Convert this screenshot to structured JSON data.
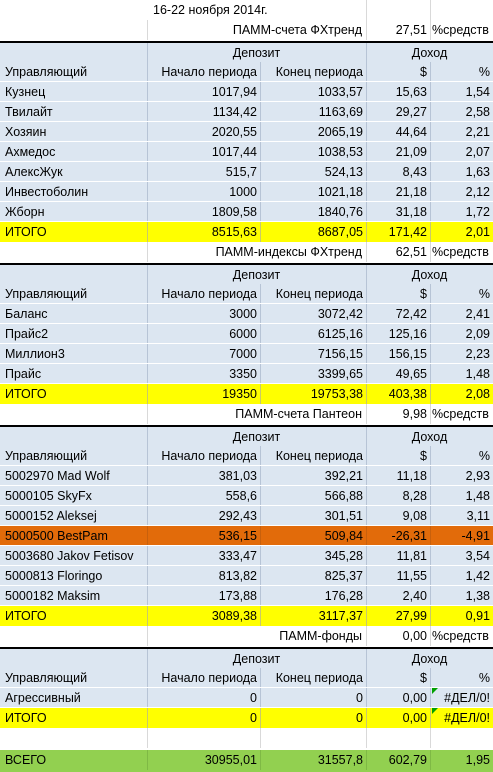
{
  "title": "16-22 ноября 2014г.",
  "headers": {
    "manager": "Управляющий",
    "deposit": "Депозит",
    "income": "Доход",
    "start": "Начало периода",
    "end": "Конец периода",
    "dollar": "$",
    "percent": "%"
  },
  "sections": [
    {
      "title": "ПАММ-счета ФХтренд",
      "share": "27,51",
      "share_unit": "%средств",
      "rows": [
        {
          "name": "Кузнец",
          "start": "1017,94",
          "end": "1033,57",
          "usd": "15,63",
          "pct": "1,54"
        },
        {
          "name": "Твилайт",
          "start": "1134,42",
          "end": "1163,69",
          "usd": "29,27",
          "pct": "2,58"
        },
        {
          "name": "Хозяин",
          "start": "2020,55",
          "end": "2065,19",
          "usd": "44,64",
          "pct": "2,21"
        },
        {
          "name": "Ахмедос",
          "start": "1017,44",
          "end": "1038,53",
          "usd": "21,09",
          "pct": "2,07"
        },
        {
          "name": "АлексЖук",
          "start": "515,7",
          "end": "524,13",
          "usd": "8,43",
          "pct": "1,63"
        },
        {
          "name": "Инвестоболин",
          "start": "1000",
          "end": "1021,18",
          "usd": "21,18",
          "pct": "2,12"
        },
        {
          "name": "Жборн",
          "start": "1809,58",
          "end": "1840,76",
          "usd": "31,18",
          "pct": "1,72"
        }
      ],
      "total": {
        "name": "ИТОГО",
        "start": "8515,63",
        "end": "8687,05",
        "usd": "171,42",
        "pct": "2,01"
      }
    },
    {
      "title": "ПАММ-индексы ФХтренд",
      "share": "62,51",
      "share_unit": "%средств",
      "rows": [
        {
          "name": "Баланс",
          "start": "3000",
          "end": "3072,42",
          "usd": "72,42",
          "pct": "2,41"
        },
        {
          "name": "Прайс2",
          "start": "6000",
          "end": "6125,16",
          "usd": "125,16",
          "pct": "2,09"
        },
        {
          "name": "Миллион3",
          "start": "7000",
          "end": "7156,15",
          "usd": "156,15",
          "pct": "2,23"
        },
        {
          "name": "Прайс",
          "start": "3350",
          "end": "3399,65",
          "usd": "49,65",
          "pct": "1,48"
        }
      ],
      "total": {
        "name": "ИТОГО",
        "start": "19350",
        "end": "19753,38",
        "usd": "403,38",
        "pct": "2,08"
      }
    },
    {
      "title": "ПАММ-счета Пантеон",
      "share": "9,98",
      "share_unit": "%средств",
      "rows": [
        {
          "name": "5002970 Mad Wolf",
          "start": "381,03",
          "end": "392,21",
          "usd": "11,18",
          "pct": "2,93"
        },
        {
          "name": "5000105 SkyFx",
          "start": "558,6",
          "end": "566,88",
          "usd": "8,28",
          "pct": "1,48"
        },
        {
          "name": "5000152 Aleksej",
          "start": "292,43",
          "end": "301,51",
          "usd": "9,08",
          "pct": "3,11"
        },
        {
          "name": "5000500 BestPam",
          "start": "536,15",
          "end": "509,84",
          "usd": "-26,31",
          "pct": "-4,91",
          "highlight": "#e26b0a"
        },
        {
          "name": "5003680 Jakov Fetisov",
          "start": "333,47",
          "end": "345,28",
          "usd": "11,81",
          "pct": "3,54"
        },
        {
          "name": "5000813 Floringo",
          "start": "813,82",
          "end": "825,37",
          "usd": "11,55",
          "pct": "1,42"
        },
        {
          "name": "5000182 Maksim",
          "start": "173,88",
          "end": "176,28",
          "usd": "2,40",
          "pct": "1,38"
        }
      ],
      "total": {
        "name": "ИТОГО",
        "start": "3089,38",
        "end": "3117,37",
        "usd": "27,99",
        "pct": "0,91"
      }
    },
    {
      "title": "ПАММ-фонды",
      "share": "0,00",
      "share_unit": "%средств",
      "rows": [
        {
          "name": "Агрессивный",
          "start": "0",
          "end": "0",
          "usd": "0,00",
          "pct": "#ДЕЛ/0!"
        }
      ],
      "total": {
        "name": "ИТОГО",
        "start": "0",
        "end": "0",
        "usd": "0,00",
        "pct": "#ДЕЛ/0!"
      }
    }
  ],
  "grand_total": {
    "name": "ВСЕГО",
    "start": "30955,01",
    "end": "31557,8",
    "usd": "602,79",
    "pct": "1,95"
  },
  "colors": {
    "table_bg": "#dce6f1",
    "total_bg": "#ffff00",
    "loss_bg": "#e26b0a",
    "grand_total_bg": "#92d050",
    "error_marker": "#00a000"
  }
}
